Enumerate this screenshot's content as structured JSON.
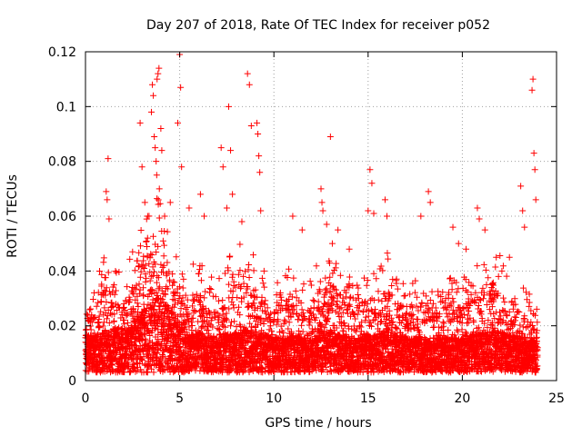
{
  "chart_data": {
    "type": "scatter",
    "title": "Day 207 of 2018, Rate Of TEC Index for receiver p052",
    "xlabel": "GPS time / hours",
    "ylabel": "ROTI / TECUs",
    "xlim": [
      0,
      25
    ],
    "ylim": [
      0,
      0.12
    ],
    "x_ticks": [
      0,
      5,
      10,
      15,
      20,
      25
    ],
    "x_tick_labels": [
      "0",
      "5",
      "10",
      "15",
      "20",
      "25"
    ],
    "y_ticks": [
      0,
      0.02,
      0.04,
      0.06,
      0.08,
      0.1,
      0.12
    ],
    "y_tick_labels": [
      "0",
      "0.02",
      "0.04",
      "0.06",
      "0.08",
      "0.1",
      "0.12"
    ],
    "grid": true,
    "marker": "plus",
    "marker_color": "#ff0000",
    "series": [
      {
        "name": "ROTI",
        "points": [
          [
            1.2,
            0.081
          ],
          [
            1.1,
            0.069
          ],
          [
            1.15,
            0.066
          ],
          [
            1.25,
            0.059
          ],
          [
            2.5,
            0.047
          ],
          [
            2.9,
            0.094
          ],
          [
            3.0,
            0.078
          ],
          [
            3.15,
            0.065
          ],
          [
            3.3,
            0.06
          ],
          [
            3.5,
            0.098
          ],
          [
            3.55,
            0.108
          ],
          [
            3.6,
            0.104
          ],
          [
            3.65,
            0.089
          ],
          [
            3.7,
            0.085
          ],
          [
            3.75,
            0.08
          ],
          [
            3.78,
            0.075
          ],
          [
            3.8,
            0.11
          ],
          [
            3.85,
            0.112
          ],
          [
            3.9,
            0.114
          ],
          [
            3.92,
            0.07
          ],
          [
            4.0,
            0.092
          ],
          [
            4.05,
            0.084
          ],
          [
            4.2,
            0.06
          ],
          [
            4.5,
            0.065
          ],
          [
            4.9,
            0.094
          ],
          [
            5.0,
            0.119
          ],
          [
            5.05,
            0.107
          ],
          [
            5.1,
            0.078
          ],
          [
            5.5,
            0.063
          ],
          [
            6.1,
            0.068
          ],
          [
            6.3,
            0.06
          ],
          [
            7.2,
            0.085
          ],
          [
            7.3,
            0.078
          ],
          [
            7.5,
            0.063
          ],
          [
            7.6,
            0.1
          ],
          [
            7.7,
            0.084
          ],
          [
            7.8,
            0.068
          ],
          [
            8.3,
            0.058
          ],
          [
            8.6,
            0.112
          ],
          [
            8.7,
            0.108
          ],
          [
            8.8,
            0.093
          ],
          [
            9.1,
            0.094
          ],
          [
            9.15,
            0.09
          ],
          [
            9.2,
            0.082
          ],
          [
            9.25,
            0.076
          ],
          [
            9.3,
            0.062
          ],
          [
            11.0,
            0.06
          ],
          [
            11.5,
            0.055
          ],
          [
            12.5,
            0.07
          ],
          [
            12.55,
            0.065
          ],
          [
            12.6,
            0.062
          ],
          [
            12.8,
            0.057
          ],
          [
            13.0,
            0.089
          ],
          [
            13.1,
            0.05
          ],
          [
            13.4,
            0.055
          ],
          [
            14.0,
            0.048
          ],
          [
            15.0,
            0.062
          ],
          [
            15.1,
            0.077
          ],
          [
            15.2,
            0.072
          ],
          [
            15.3,
            0.061
          ],
          [
            15.9,
            0.066
          ],
          [
            16.0,
            0.06
          ],
          [
            17.8,
            0.06
          ],
          [
            18.2,
            0.069
          ],
          [
            18.3,
            0.065
          ],
          [
            19.5,
            0.056
          ],
          [
            19.8,
            0.05
          ],
          [
            20.2,
            0.048
          ],
          [
            20.8,
            0.063
          ],
          [
            20.9,
            0.059
          ],
          [
            21.2,
            0.055
          ],
          [
            21.8,
            0.045
          ],
          [
            22.1,
            0.04
          ],
          [
            22.5,
            0.045
          ],
          [
            23.1,
            0.071
          ],
          [
            23.2,
            0.062
          ],
          [
            23.3,
            0.056
          ],
          [
            23.7,
            0.106
          ],
          [
            23.75,
            0.11
          ],
          [
            23.8,
            0.083
          ],
          [
            23.85,
            0.077
          ],
          [
            23.9,
            0.066
          ]
        ],
        "dense_band": [
          [
            0.0,
            0.012,
            0.02
          ],
          [
            0.5,
            0.012,
            0.026
          ],
          [
            1.0,
            0.013,
            0.035
          ],
          [
            1.5,
            0.014,
            0.032
          ],
          [
            2.0,
            0.013,
            0.028
          ],
          [
            2.5,
            0.016,
            0.036
          ],
          [
            3.0,
            0.019,
            0.045
          ],
          [
            3.5,
            0.022,
            0.05
          ],
          [
            4.0,
            0.024,
            0.05
          ],
          [
            4.5,
            0.02,
            0.04
          ],
          [
            5.0,
            0.015,
            0.032
          ],
          [
            5.5,
            0.012,
            0.03
          ],
          [
            6.0,
            0.013,
            0.034
          ],
          [
            6.5,
            0.011,
            0.028
          ],
          [
            7.0,
            0.011,
            0.03
          ],
          [
            7.5,
            0.012,
            0.034
          ],
          [
            8.0,
            0.013,
            0.036
          ],
          [
            8.5,
            0.014,
            0.04
          ],
          [
            9.0,
            0.013,
            0.034
          ],
          [
            9.5,
            0.012,
            0.03
          ],
          [
            10.0,
            0.011,
            0.028
          ],
          [
            10.5,
            0.011,
            0.028
          ],
          [
            11.0,
            0.012,
            0.032
          ],
          [
            11.5,
            0.011,
            0.028
          ],
          [
            12.0,
            0.011,
            0.028
          ],
          [
            12.5,
            0.013,
            0.034
          ],
          [
            13.0,
            0.013,
            0.036
          ],
          [
            13.5,
            0.012,
            0.032
          ],
          [
            14.0,
            0.011,
            0.028
          ],
          [
            14.5,
            0.011,
            0.028
          ],
          [
            15.0,
            0.012,
            0.03
          ],
          [
            15.5,
            0.012,
            0.03
          ],
          [
            16.0,
            0.014,
            0.036
          ],
          [
            16.5,
            0.012,
            0.03
          ],
          [
            17.0,
            0.011,
            0.026
          ],
          [
            17.5,
            0.011,
            0.028
          ],
          [
            18.0,
            0.011,
            0.03
          ],
          [
            18.5,
            0.011,
            0.028
          ],
          [
            19.0,
            0.011,
            0.028
          ],
          [
            19.5,
            0.011,
            0.028
          ],
          [
            20.0,
            0.011,
            0.028
          ],
          [
            20.5,
            0.012,
            0.032
          ],
          [
            21.0,
            0.013,
            0.034
          ],
          [
            21.5,
            0.013,
            0.036
          ],
          [
            22.0,
            0.013,
            0.034
          ],
          [
            22.5,
            0.012,
            0.03
          ],
          [
            23.0,
            0.011,
            0.026
          ],
          [
            23.5,
            0.01,
            0.024
          ],
          [
            24.0,
            0.01,
            0.02
          ]
        ]
      }
    ]
  }
}
